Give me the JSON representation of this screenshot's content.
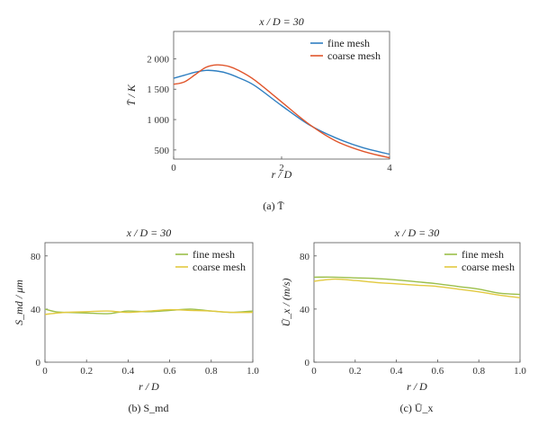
{
  "captions": [
    "(a) T̄",
    "(b) S_md",
    "(c) Ū_x"
  ],
  "colors": {
    "fine": "#2f7fc1",
    "coarse": "#e0552b",
    "fine_light": "#9bbf4a",
    "coarse_light": "#e2c93f"
  },
  "chart_data": [
    {
      "type": "line",
      "title": "x / D = 30",
      "xlabel": "r / D",
      "ylabel": "T̄ / K",
      "xlim": [
        0,
        4
      ],
      "ylim": [
        350,
        2450
      ],
      "xticks": [
        0,
        2,
        4
      ],
      "yticks": [
        500,
        1000,
        1500,
        2000
      ],
      "ytick_labels": [
        "500",
        "1 000",
        "1 500",
        "2 000"
      ],
      "legend_position": "top-right",
      "grid": false,
      "series": [
        {
          "name": "fine mesh",
          "color": "#2f7fc1",
          "x": [
            0,
            0.2,
            0.4,
            0.6,
            0.8,
            1.0,
            1.2,
            1.5,
            2.0,
            2.5,
            3.0,
            3.5,
            4.0
          ],
          "y": [
            1680,
            1730,
            1780,
            1810,
            1800,
            1760,
            1690,
            1560,
            1230,
            920,
            700,
            540,
            430
          ]
        },
        {
          "name": "coarse mesh",
          "color": "#e0552b",
          "x": [
            0,
            0.2,
            0.4,
            0.6,
            0.8,
            1.0,
            1.2,
            1.5,
            2.0,
            2.5,
            3.0,
            3.5,
            4.0
          ],
          "y": [
            1580,
            1620,
            1740,
            1860,
            1900,
            1880,
            1810,
            1650,
            1290,
            930,
            650,
            480,
            370
          ]
        }
      ]
    },
    {
      "type": "line",
      "title": "x / D = 30",
      "xlabel": "r / D",
      "ylabel": "S_md / μm",
      "xlim": [
        0,
        1.0
      ],
      "ylim": [
        0,
        90
      ],
      "xticks": [
        0,
        0.2,
        0.4,
        0.6,
        0.8,
        1.0
      ],
      "xtick_labels": [
        "0",
        "0.2",
        "0.4",
        "0.6",
        "0.8",
        "1.0"
      ],
      "yticks": [
        0,
        40,
        80
      ],
      "legend_position": "top-right",
      "grid": false,
      "series": [
        {
          "name": "fine mesh",
          "color": "#9bbf4a",
          "x": [
            0,
            0.05,
            0.1,
            0.2,
            0.3,
            0.35,
            0.4,
            0.5,
            0.6,
            0.7,
            0.8,
            0.9,
            1.0
          ],
          "y": [
            40,
            38,
            37.5,
            37,
            36.5,
            37.5,
            38.5,
            38,
            39,
            40,
            38.5,
            37.5,
            38.5
          ]
        },
        {
          "name": "coarse mesh",
          "color": "#e2c93f",
          "x": [
            0,
            0.1,
            0.2,
            0.3,
            0.4,
            0.5,
            0.6,
            0.7,
            0.8,
            0.9,
            1.0
          ],
          "y": [
            36,
            37.5,
            38,
            38.5,
            37.5,
            38.5,
            39.5,
            39,
            38.5,
            37.5,
            37.5
          ]
        }
      ]
    },
    {
      "type": "line",
      "title": "x / D = 30",
      "xlabel": "r / D",
      "ylabel": "Ū_x / (m/s)",
      "xlim": [
        0,
        1.0
      ],
      "ylim": [
        0,
        90
      ],
      "xticks": [
        0,
        0.2,
        0.4,
        0.6,
        0.8,
        1.0
      ],
      "xtick_labels": [
        "0",
        "0.2",
        "0.4",
        "0.6",
        "0.8",
        "1.0"
      ],
      "yticks": [
        0,
        40,
        80
      ],
      "legend_position": "top-right",
      "grid": false,
      "series": [
        {
          "name": "fine mesh",
          "color": "#9bbf4a",
          "x": [
            0,
            0.1,
            0.2,
            0.3,
            0.4,
            0.5,
            0.6,
            0.7,
            0.8,
            0.9,
            1.0
          ],
          "y": [
            64,
            64,
            63.5,
            63,
            62,
            60.5,
            59,
            57,
            55,
            52,
            51
          ]
        },
        {
          "name": "coarse mesh",
          "color": "#e2c93f",
          "x": [
            0,
            0.1,
            0.2,
            0.3,
            0.4,
            0.5,
            0.6,
            0.7,
            0.8,
            0.9,
            1.0
          ],
          "y": [
            61,
            62.5,
            61.5,
            60,
            59,
            58,
            57,
            55,
            53,
            50.5,
            48.5
          ]
        }
      ]
    }
  ]
}
